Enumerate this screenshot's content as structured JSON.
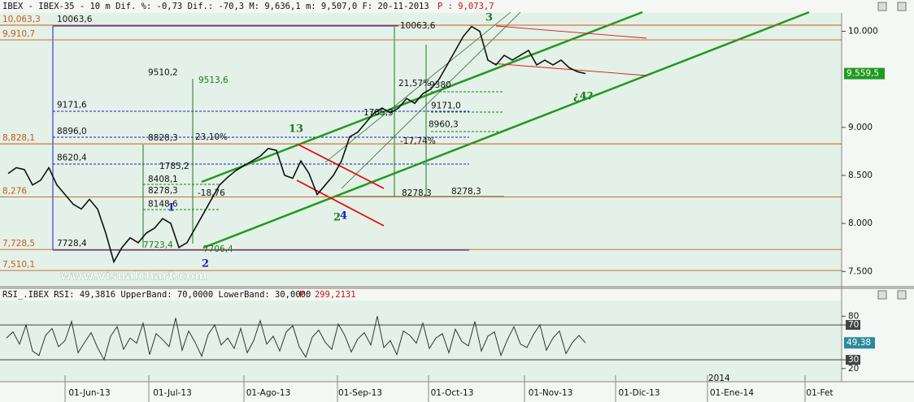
{
  "header": "IBEX - IBEX-35 - 10 m Dif. %: -0,73 Dif.: -70,3 M: 9,636,1 m: 9,507,0 F: 20-11-2013",
  "header_price": "P : 9,073,7",
  "rsi_header": "RSI_.IBEX RSI: 49,3816 UpperBand: 70,0000 LowerBand: 30,0000",
  "rsi_header_price": "P: 299,2131",
  "watermark": "www.visualchart.com",
  "x_labels": [
    "01-Jun-13",
    "01-Jul-13",
    "01-Ago-13",
    "01-Sep-13",
    "01-Oct-13",
    "01-Nov-13",
    "01-Dic-13",
    "01-Ene-14",
    "01-Fet"
  ],
  "year_label": "2014",
  "chart_data": [
    {
      "type": "line",
      "color": "#111111",
      "values": [
        8520,
        8580,
        8560,
        8400,
        8450,
        8580,
        8400,
        8300,
        8200,
        8150,
        8250,
        8150,
        7900,
        7600,
        7750,
        7850,
        7800,
        7900,
        7950,
        8050,
        8000,
        7750,
        7800,
        7950,
        8100,
        8250,
        8400,
        8480,
        8550,
        8600,
        8650,
        8700,
        8780,
        8760,
        8500,
        8470,
        8650,
        8520,
        8300,
        8400,
        8500,
        8650,
        8900,
        8950,
        9050,
        9150,
        9200,
        9150,
        9200,
        9300,
        9250,
        9350,
        9400,
        9500,
        9650,
        9800,
        9950,
        10050,
        10000,
        9700,
        9650,
        9750,
        9700,
        9750,
        9800,
        9650,
        9700,
        9650,
        9700,
        9620,
        9580,
        9559.5
      ],
      "ylim": [
        7350,
        10190
      ],
      "yticks": [
        {
          "value": 10000,
          "label": "10.000"
        },
        {
          "value": 9000,
          "label": "9.000"
        },
        {
          "value": 8500,
          "label": "8.500"
        },
        {
          "value": 8000,
          "label": "8.000"
        },
        {
          "value": 7500,
          "label": "7.500"
        }
      ],
      "last_value": {
        "value": 9559.5,
        "label": "9.559,5"
      },
      "levels": [
        {
          "value": 10063.3,
          "label": "10,063,3"
        },
        {
          "value": 9910.7,
          "label": "9,910,7"
        },
        {
          "value": 8828.1,
          "label": "8,828,1"
        },
        {
          "value": 8276,
          "label": "8,276"
        },
        {
          "value": 7728.5,
          "label": "7,728,5"
        },
        {
          "value": 7510.1,
          "label": "7,510,1"
        }
      ],
      "price_labels": [
        {
          "value": 10063.6,
          "label": "10063,6"
        },
        {
          "value": 9510.2,
          "label": "9510,2"
        },
        {
          "value": 9513.6,
          "label": "9513,6"
        },
        {
          "value": 9171.6,
          "label": "9171,6"
        },
        {
          "value": 8896,
          "label": "8896,0"
        },
        {
          "value": 8828.3,
          "label": "8828,3"
        },
        {
          "value": 8620.4,
          "label": "8620,4"
        },
        {
          "value": 8408.1,
          "label": "8408,1"
        },
        {
          "value": 8278.3,
          "label": "8278,3"
        },
        {
          "value": 8148.6,
          "label": "8148,6"
        },
        {
          "value": 7728.4,
          "label": "7728,4"
        },
        {
          "value": 7723.4,
          "label": "7723,4"
        },
        {
          "value": 7706.4,
          "label": "7706,4"
        },
        {
          "value": 10063.6,
          "label": "10063,6"
        },
        {
          "value": 9380,
          "label": "9380"
        },
        {
          "value": 9171,
          "label": "9171,0"
        },
        {
          "value": 8960.3,
          "label": "8960,3"
        },
        {
          "value": 8278.3,
          "label": "8278,3"
        },
        {
          "value": 8278.3,
          "label": "8278,3"
        }
      ],
      "text_labels": [
        "23,10%",
        "1785,2",
        "-18,76",
        "21,57%",
        "1785,3",
        "-17,74%"
      ],
      "wave_labels": [
        {
          "text": "3",
          "color": "#1d7a1d"
        },
        {
          "text": "13",
          "color": "#1d7a1d"
        },
        {
          "text": "1",
          "color": "#1a1acc"
        },
        {
          "text": "2",
          "color": "#1a1acc"
        },
        {
          "text": "2",
          "color": "#1d7a1d"
        },
        {
          "text": "4",
          "color": "#1a1acc"
        },
        {
          "text": "¿4?",
          "color": "#1d7a1d"
        }
      ]
    },
    {
      "type": "line",
      "color": "#333333",
      "values": [
        55,
        62,
        48,
        70,
        40,
        35,
        58,
        66,
        45,
        52,
        74,
        38,
        50,
        61,
        44,
        30,
        57,
        68,
        42,
        55,
        49,
        72,
        36,
        60,
        53,
        45,
        78,
        41,
        63,
        50,
        34,
        59,
        70,
        47,
        55,
        43,
        66,
        38,
        52,
        75,
        48,
        57,
        40,
        62,
        69,
        45,
        33,
        56,
        64,
        50,
        42,
        71,
        58,
        39,
        54,
        61,
        47,
        80,
        44,
        52,
        36,
        63,
        58,
        49,
        72,
        43,
        55,
        60,
        38,
        65,
        51,
        46,
        74,
        40,
        57,
        62,
        35,
        53,
        68,
        48,
        44,
        59,
        70,
        41,
        55,
        63,
        37,
        50,
        58,
        49.38
      ],
      "ylim": [
        17,
        98
      ],
      "yticks": [
        80,
        70,
        30,
        20
      ],
      "last_value": {
        "value": 49.38,
        "label": "49,38"
      }
    }
  ]
}
